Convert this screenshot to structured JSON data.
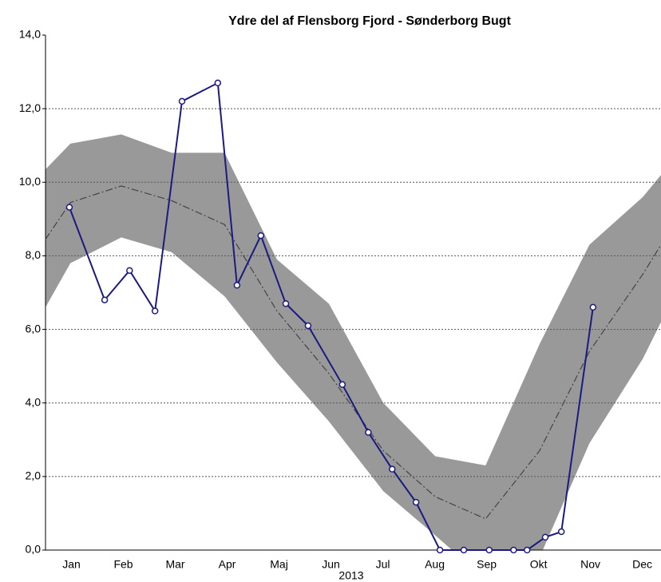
{
  "chart_data": {
    "type": "line",
    "title": "Ydre del af Flensborg Fjord - Sønderborg Bugt",
    "xlabel": "2013",
    "xlim": [
      0,
      11.86
    ],
    "xticks": [
      {
        "value": 0.5,
        "label": "Jan"
      },
      {
        "value": 1.5,
        "label": "Feb"
      },
      {
        "value": 2.5,
        "label": "Mar"
      },
      {
        "value": 3.5,
        "label": "Apr"
      },
      {
        "value": 4.5,
        "label": "Maj"
      },
      {
        "value": 5.5,
        "label": "Jun"
      },
      {
        "value": 6.5,
        "label": "Jul"
      },
      {
        "value": 7.5,
        "label": "Aug"
      },
      {
        "value": 8.5,
        "label": "Sep"
      },
      {
        "value": 9.5,
        "label": "Okt"
      },
      {
        "value": 10.5,
        "label": "Nov"
      },
      {
        "value": 11.5,
        "label": "Dec"
      }
    ],
    "ylim": [
      0,
      14
    ],
    "yticks": [
      {
        "value": 0,
        "label": "0,0"
      },
      {
        "value": 2,
        "label": "2,0"
      },
      {
        "value": 4,
        "label": "4,0"
      },
      {
        "value": 6,
        "label": "6,0"
      },
      {
        "value": 8,
        "label": "8,0"
      },
      {
        "value": 10,
        "label": "10,0"
      },
      {
        "value": 12,
        "label": "12,0"
      },
      {
        "value": 14,
        "label": "14,0"
      }
    ],
    "grid": true,
    "band": {
      "color": "#999999",
      "x": [
        0,
        0.48,
        1.46,
        2.43,
        3.45,
        4.46,
        5.46,
        6.51,
        7.51,
        8.48,
        9.52,
        10.48,
        11.51,
        11.86
      ],
      "upper": [
        10.35,
        11.05,
        11.3,
        10.8,
        10.8,
        7.9,
        6.7,
        4.0,
        2.55,
        2.3,
        5.6,
        8.3,
        9.6,
        10.2
      ],
      "lower": [
        6.6,
        7.8,
        8.5,
        8.1,
        6.9,
        5.1,
        3.5,
        1.6,
        0.4,
        -0.8,
        -0.2,
        2.9,
        5.2,
        6.2
      ]
    },
    "mean": {
      "color": "#444444",
      "x": [
        0,
        0.48,
        1.46,
        2.43,
        3.45,
        4.46,
        5.46,
        6.51,
        7.51,
        8.48,
        9.52,
        10.48,
        11.51,
        11.86
      ],
      "values": [
        8.45,
        9.45,
        9.9,
        9.5,
        8.85,
        6.5,
        4.8,
        2.7,
        1.45,
        0.85,
        2.7,
        5.4,
        7.5,
        8.3
      ]
    },
    "series": [
      {
        "color": "#1a1a80",
        "x": [
          0.46,
          1.14,
          1.62,
          2.11,
          2.63,
          3.32,
          3.69,
          4.15,
          4.63,
          5.06,
          5.72,
          6.22,
          6.68,
          7.14,
          7.6,
          8.06,
          8.55,
          9.02,
          9.28,
          9.63,
          9.94,
          10.55
        ],
        "values": [
          9.32,
          6.8,
          7.6,
          6.5,
          12.2,
          12.7,
          7.2,
          8.55,
          6.7,
          6.1,
          4.5,
          3.2,
          2.2,
          1.3,
          0,
          0,
          0,
          0,
          0,
          0.35,
          0.5,
          6.6
        ]
      }
    ]
  }
}
